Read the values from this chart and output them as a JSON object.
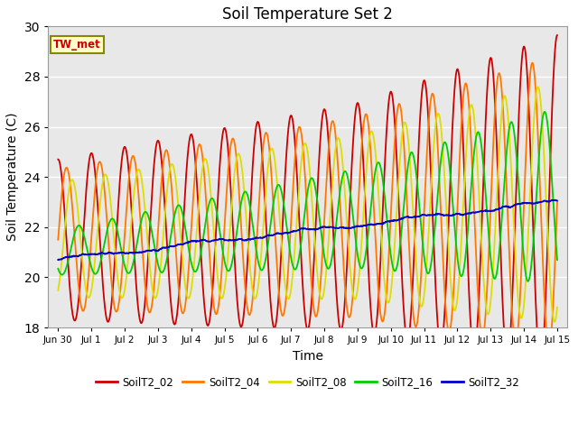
{
  "title": "Soil Temperature Set 2",
  "xlabel": "Time",
  "ylabel": "Soil Temperature (C)",
  "ylim": [
    18,
    30
  ],
  "bg_color": "#e8e8e8",
  "series_colors": {
    "SoilT2_02": "#cc0000",
    "SoilT2_04": "#ff7700",
    "SoilT2_08": "#dddd00",
    "SoilT2_16": "#00cc00",
    "SoilT2_32": "#0000cc"
  },
  "tw_met_label": "TW_met",
  "tw_met_color": "#cc0000",
  "tw_met_bg": "#ffffcc",
  "tw_met_edge": "#888800",
  "xtick_labels": [
    "Jun 30",
    "Jul 1",
    "Jul 2",
    "Jul 3",
    "Jul 4",
    "Jul 5",
    "Jul 6",
    "Jul 7",
    "Jul 8",
    "Jul 9",
    "Jul 10",
    "Jul 11",
    "Jul 12",
    "Jul 13",
    "Jul 14",
    "Jul 15"
  ],
  "xtick_positions": [
    0,
    1,
    2,
    3,
    4,
    5,
    6,
    7,
    8,
    9,
    10,
    11,
    12,
    13,
    14,
    15
  ],
  "ytick_positions": [
    18,
    20,
    22,
    24,
    26,
    28,
    30
  ],
  "figsize": [
    6.4,
    4.8
  ],
  "dpi": 100
}
